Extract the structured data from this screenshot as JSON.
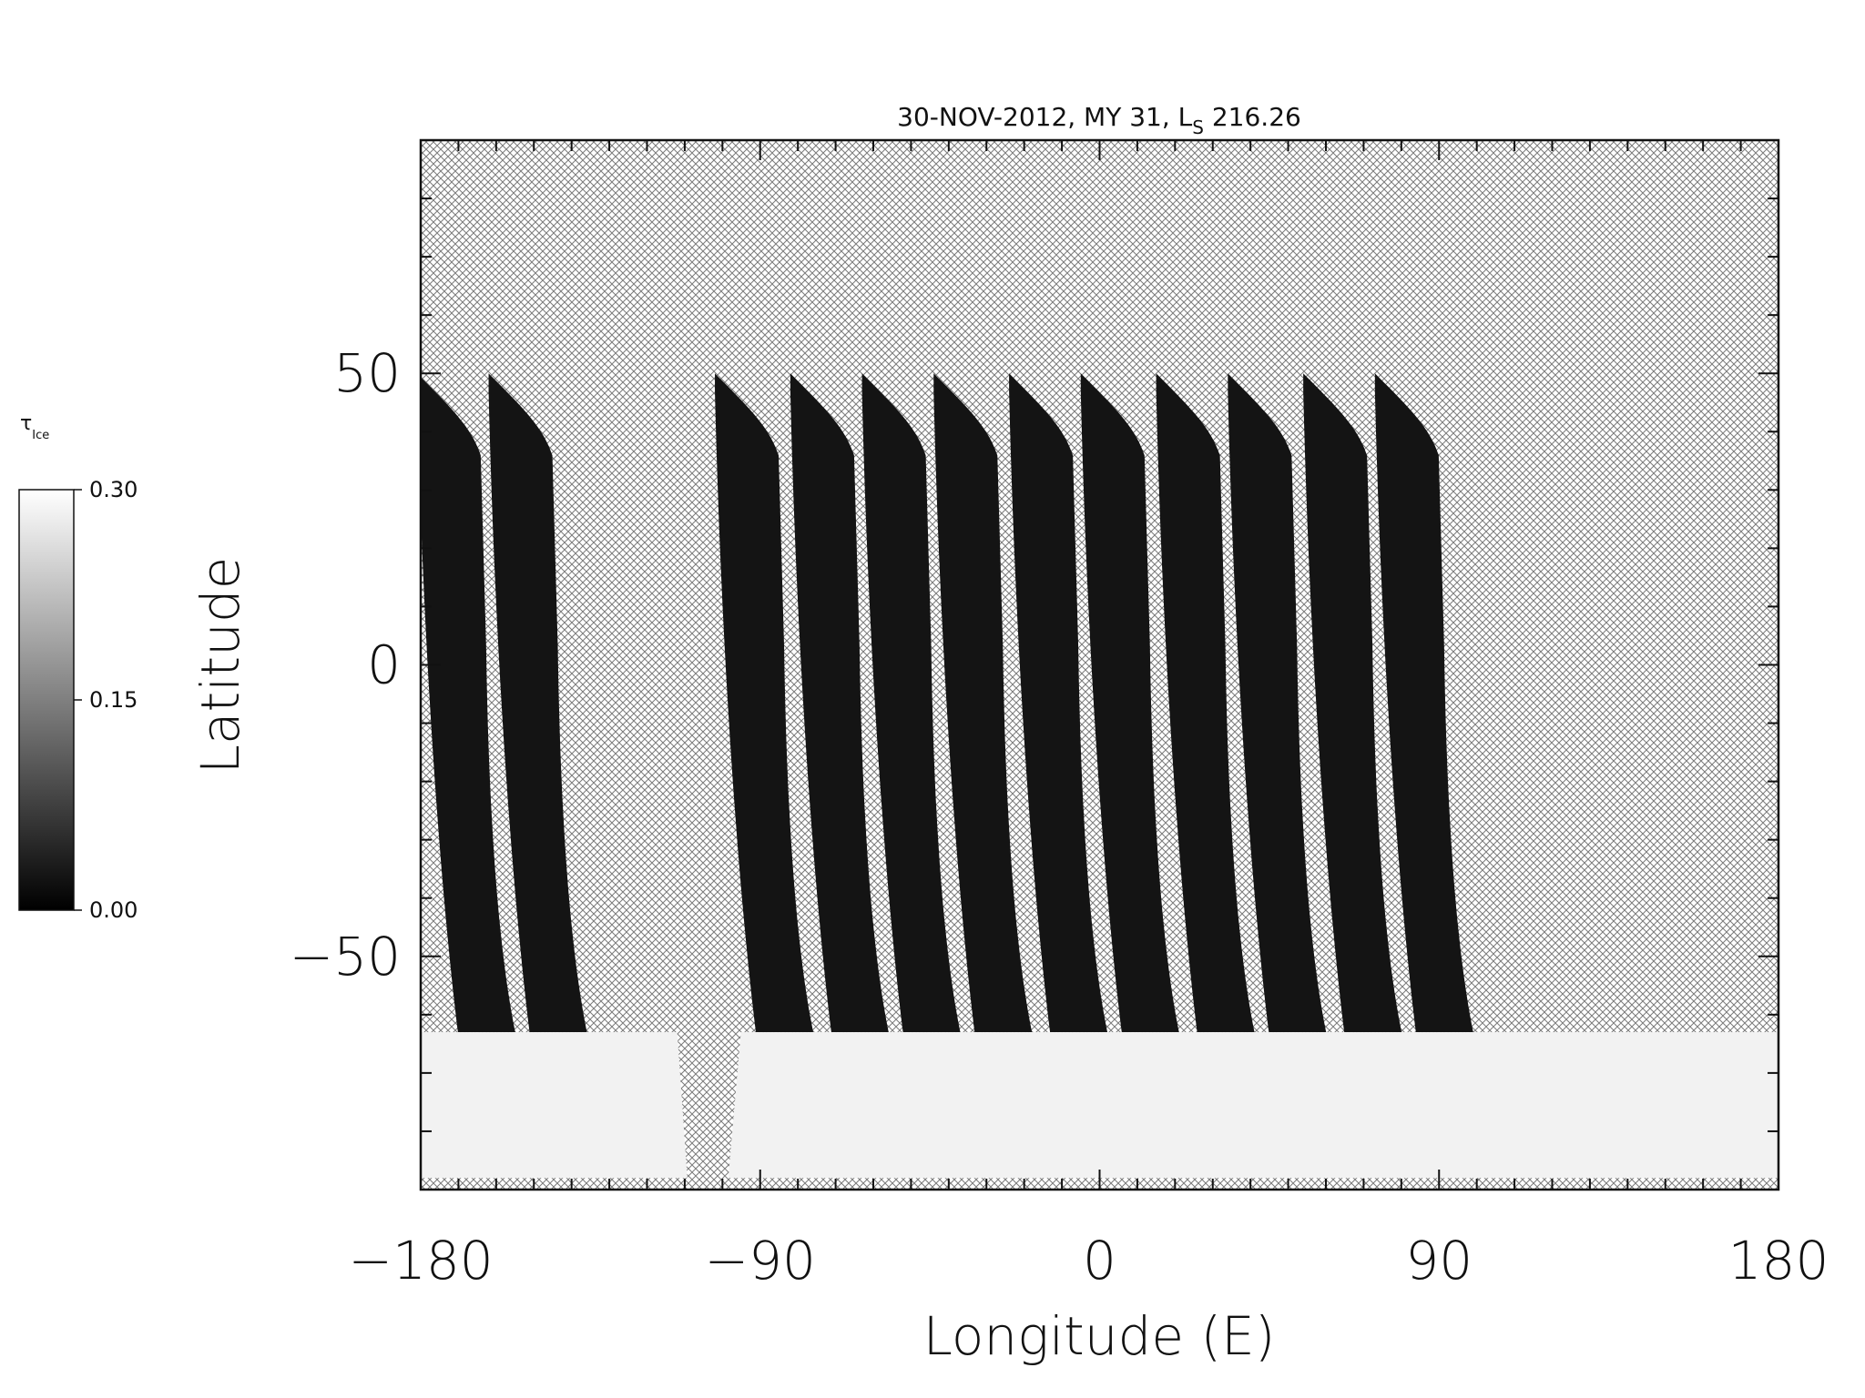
{
  "chart_data": {
    "type": "heatmap",
    "title": "30-NOV-2012, MY 31,  L",
    "title_subscript": "S",
    "title_suffix": " 216.26",
    "xlabel": "Longitude (E)",
    "ylabel": "Latitude",
    "xlim": [
      -180,
      180
    ],
    "ylim": [
      -90,
      90
    ],
    "x_ticks": [
      {
        "value": -180,
        "label": "−180"
      },
      {
        "value": -90,
        "label": "−90"
      },
      {
        "value": 0,
        "label": "0"
      },
      {
        "value": 90,
        "label": "90"
      },
      {
        "value": 180,
        "label": "180"
      }
    ],
    "y_ticks": [
      {
        "value": -50,
        "label": "−50"
      },
      {
        "value": 0,
        "label": "0"
      },
      {
        "value": 50,
        "label": "50"
      }
    ],
    "colorbar": {
      "label": "τ",
      "label_subscript": "Ice",
      "range": [
        0.0,
        0.3
      ],
      "ticks": [
        {
          "value": 0.3,
          "label": "0.30"
        },
        {
          "value": 0.15,
          "label": "0.15"
        },
        {
          "value": 0.0,
          "label": "0.00"
        }
      ],
      "colormap": "grayscale"
    },
    "no_data_style": "cross-hatched",
    "orbit_swaths": {
      "description_values": "low ice opacity swaths",
      "value": 0.0,
      "top_longitudes": [
        -181,
        -162,
        -102,
        -82,
        -63,
        -44,
        -24,
        -5,
        15,
        34,
        54,
        73
      ],
      "top_latitude": 50,
      "bottom_latitude": -63
    },
    "polar_ice_region": {
      "value": 0.28,
      "latitude_range": [
        -88,
        -63
      ]
    }
  },
  "colors": {
    "background": "#ffffff",
    "axis": "#111111",
    "swath": "#141414",
    "ice": "#f2f2f2",
    "hatch_line": "#7a7a7a"
  }
}
